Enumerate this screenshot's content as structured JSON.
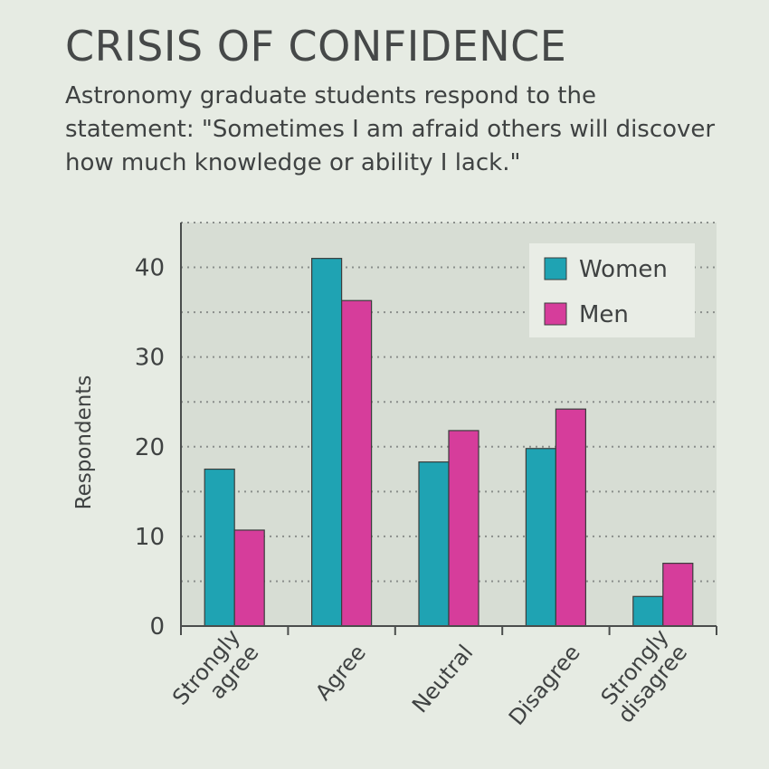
{
  "chart_data": {
    "type": "bar",
    "title": "CRISIS OF CONFIDENCE",
    "subtitle": "Astronomy graduate students respond to the statement: \"Sometimes I am afraid others will discover how much knowledge or ability I lack.\"",
    "xlabel": "",
    "ylabel": "Respondents",
    "categories": [
      [
        "Strongly",
        "agree"
      ],
      [
        "Agree"
      ],
      [
        "Neutral"
      ],
      [
        "Disagree"
      ],
      [
        "Strongly",
        "disagree"
      ]
    ],
    "series": [
      {
        "name": "Women",
        "color": "#1fa3b3",
        "values": [
          17.5,
          41,
          18.3,
          19.8,
          3.3
        ]
      },
      {
        "name": "Men",
        "color": "#d63d9b",
        "values": [
          10.7,
          36.3,
          21.8,
          24.2,
          7
        ]
      }
    ],
    "ylim": [
      0,
      45
    ],
    "yticks": [
      0,
      10,
      20,
      30,
      40
    ],
    "grid": true,
    "legend": "top-right",
    "colors": {
      "plot_bg": "#d7ddd4",
      "axis": "#4a4d4c",
      "grid": "#8a8e8b",
      "legend_bg": "#e9ede6"
    }
  }
}
